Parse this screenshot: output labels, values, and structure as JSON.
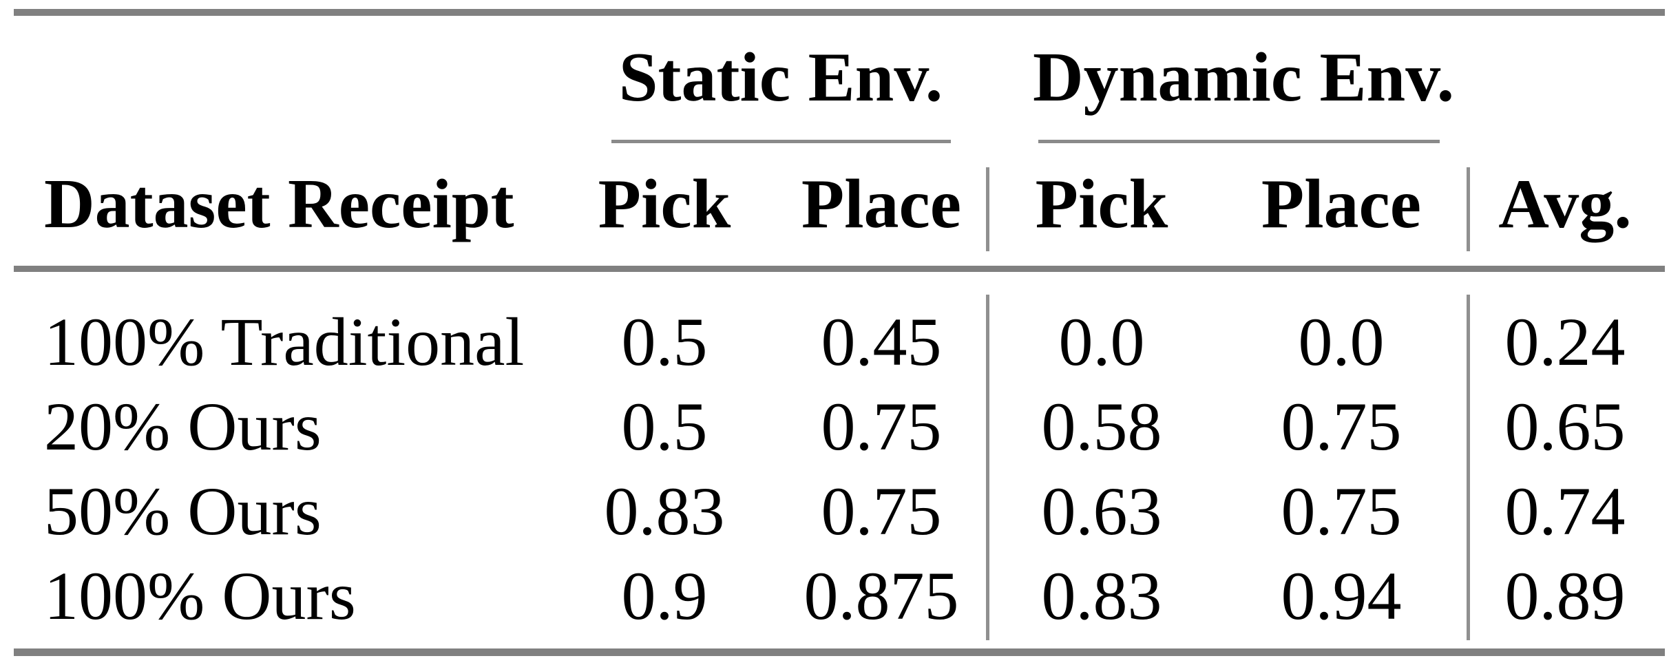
{
  "table": {
    "group_headers": [
      {
        "label": "Static Env."
      },
      {
        "label": "Dynamic Env."
      }
    ],
    "columns": [
      "Dataset Receipt",
      "Pick",
      "Place",
      "Pick",
      "Place",
      "Avg."
    ],
    "rows": [
      {
        "label": "100% Traditional",
        "values": [
          "0.5",
          "0.45",
          "0.0",
          "0.0",
          "0.24"
        ]
      },
      {
        "label": "20% Ours",
        "values": [
          "0.5",
          "0.75",
          "0.58",
          "0.75",
          "0.65"
        ]
      },
      {
        "label": "50% Ours",
        "values": [
          "0.83",
          "0.75",
          "0.63",
          "0.75",
          "0.74"
        ]
      },
      {
        "label": "100% Ours",
        "values": [
          "0.9",
          "0.875",
          "0.83",
          "0.94",
          "0.89"
        ]
      }
    ]
  },
  "colors": {
    "background": "#ffffff",
    "text": "#000000",
    "thick_rule": "#808080",
    "thin_rule": "#8a8a8a",
    "vertical_rule": "#909090"
  },
  "chart_data": {
    "type": "table",
    "title": "",
    "column_groups": [
      {
        "label": "Static Env.",
        "columns": [
          "Pick",
          "Place"
        ]
      },
      {
        "label": "Dynamic Env.",
        "columns": [
          "Pick",
          "Place"
        ]
      }
    ],
    "columns": [
      "Dataset Receipt",
      "Static Env. Pick",
      "Static Env. Place",
      "Dynamic Env. Pick",
      "Dynamic Env. Place",
      "Avg."
    ],
    "rows": [
      [
        "100% Traditional",
        0.5,
        0.45,
        0.0,
        0.0,
        0.24
      ],
      [
        "20% Ours",
        0.5,
        0.75,
        0.58,
        0.75,
        0.65
      ],
      [
        "50% Ours",
        0.83,
        0.75,
        0.63,
        0.75,
        0.74
      ],
      [
        "100% Ours",
        0.9,
        0.875,
        0.83,
        0.94,
        0.89
      ]
    ]
  }
}
